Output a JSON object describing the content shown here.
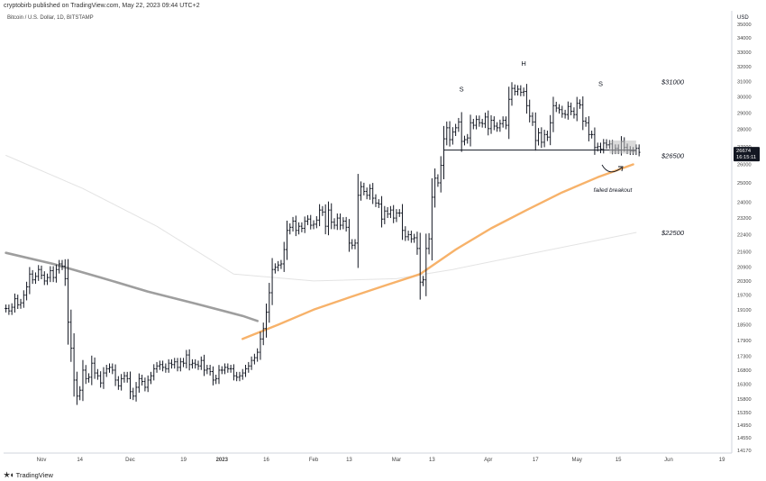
{
  "header": {
    "publisher_line": "cryptobirb published on TradingView.com, May 22, 2023 09:44 UTC+2",
    "symbol_line": "Bitcoin / U.S. Dollar, 1D, BITSTAMP"
  },
  "footer": {
    "brand": "TradingView"
  },
  "chart_data": {
    "type": "ohlc",
    "title": "Bitcoin / U.S. Dollar, 1D, BITSTAMP",
    "currency_label": "USD",
    "x_tick_labels": [
      "Nov",
      "14",
      "Dec",
      "19",
      "2023",
      "16",
      "Feb",
      "13",
      "Mar",
      "13",
      "Apr",
      "17",
      "May",
      "15",
      "Jun",
      "19"
    ],
    "x_tick_dates": [
      "2022-11-01",
      "2022-11-14",
      "2022-12-01",
      "2022-12-19",
      "2023-01-01",
      "2023-01-16",
      "2023-02-01",
      "2023-02-13",
      "2023-03-01",
      "2023-03-13",
      "2023-04-01",
      "2023-04-17",
      "2023-05-01",
      "2023-05-15",
      "2023-06-01",
      "2023-06-19"
    ],
    "y_tick_labels": [
      "35000",
      "34000",
      "33000",
      "32000",
      "31000",
      "30000",
      "29000",
      "28000",
      "27000",
      "26000",
      "25000",
      "24000",
      "23200",
      "22400",
      "21600",
      "20900",
      "20300",
      "19700",
      "19100",
      "18500",
      "17900",
      "17300",
      "16800",
      "16300",
      "15800",
      "15350",
      "14950",
      "14550",
      "14170"
    ],
    "price_axis_badge": {
      "price": "26674",
      "countdown": "16:15:11"
    },
    "annotations": {
      "left_shoulder": "S",
      "head": "H",
      "right_shoulder": "S",
      "failed_breakout": "failed breakout"
    },
    "levels": [
      {
        "label": "$31000",
        "value": 31000
      },
      {
        "label": "$26500",
        "value": 26500
      },
      {
        "label": "$22500",
        "value": 22500
      }
    ],
    "neckline": {
      "from_date": "2023-03-17",
      "to_date": "2023-05-21",
      "value": 26800
    },
    "ohlc_series": {
      "start_date": "2022-10-20",
      "closes": [
        19150,
        19050,
        19200,
        19550,
        19300,
        19380,
        19700,
        20050,
        20600,
        20350,
        20500,
        20800,
        20550,
        20300,
        20450,
        20750,
        20450,
        20800,
        21050,
        20950,
        20400,
        18600,
        17600,
        16450,
        15900,
        16100,
        16800,
        16500,
        16550,
        17050,
        16700,
        16600,
        16350,
        16700,
        16850,
        16900,
        16800,
        16450,
        16250,
        16500,
        16600,
        16500,
        16050,
        15900,
        16200,
        16500,
        16400,
        16200,
        16450,
        16600,
        16850,
        16950,
        17000,
        16900,
        16850,
        17050,
        17000,
        17100,
        16900,
        17100,
        17050,
        17350,
        17000,
        17050,
        17000,
        16950,
        17150,
        16800,
        16850,
        16750,
        16450,
        16500,
        16800,
        16800,
        16900,
        16850,
        16850,
        16600,
        16550,
        16600,
        16700,
        16850,
        16950,
        17150,
        17250,
        17450,
        17950,
        18350,
        19000,
        19800,
        20800,
        20900,
        21000,
        21050,
        21700,
        22600,
        22750,
        23050,
        22600,
        22800,
        22700,
        23050,
        23150,
        22850,
        22900,
        23100,
        23600,
        23500,
        22800,
        23600,
        23000,
        22850,
        23200,
        22850,
        23050,
        22750,
        22000,
        21900,
        22000,
        24350,
        24800,
        24550,
        24350,
        24700,
        24200,
        23950,
        23900,
        23150,
        23550,
        23400,
        23600,
        23200,
        23450,
        23450,
        22600,
        22300,
        22400,
        22200,
        22250,
        21750,
        20250,
        20350,
        21750,
        22200,
        24250,
        25250,
        25000,
        25950,
        27450,
        28100,
        27400,
        27850,
        28100,
        28450,
        27300,
        27400,
        27500,
        28400,
        28250,
        28600,
        28400,
        28350,
        28750,
        28050,
        28550,
        28200,
        28100,
        28350,
        28550,
        28250,
        29850,
        30550,
        30350,
        30500,
        30300,
        30350,
        29450,
        28800,
        28450,
        27350,
        27800,
        27250,
        27700,
        27550,
        28400,
        29450,
        29300,
        29200,
        28950,
        28900,
        29400,
        29100,
        28900,
        29600,
        29500,
        28500,
        28400,
        27700,
        27700,
        26950,
        27000,
        26850,
        27200,
        27100,
        27150,
        26800,
        26900,
        26800,
        27300,
        26950,
        26800,
        26750,
        26750,
        26900,
        26674
      ]
    },
    "ema_200": {
      "color": "#f7b26a",
      "points": [
        {
          "date": "2023-01-08",
          "value": 17950
        },
        {
          "date": "2023-01-20",
          "value": 18500
        },
        {
          "date": "2023-02-01",
          "value": 19100
        },
        {
          "date": "2023-02-13",
          "value": 19600
        },
        {
          "date": "2023-02-25",
          "value": 20100
        },
        {
          "date": "2023-03-09",
          "value": 20600
        },
        {
          "date": "2023-03-21",
          "value": 21700
        },
        {
          "date": "2023-04-02",
          "value": 22700
        },
        {
          "date": "2023-04-14",
          "value": 23600
        },
        {
          "date": "2023-04-26",
          "value": 24500
        },
        {
          "date": "2023-05-08",
          "value": 25300
        },
        {
          "date": "2023-05-20",
          "value": 26000
        }
      ]
    },
    "ma_200": {
      "color": "#9e9e9e",
      "points": [
        {
          "date": "2022-10-20",
          "value": 21550
        },
        {
          "date": "2022-11-05",
          "value": 21050
        },
        {
          "date": "2022-11-21",
          "value": 20450
        },
        {
          "date": "2022-12-07",
          "value": 19850
        },
        {
          "date": "2022-12-23",
          "value": 19350
        },
        {
          "date": "2023-01-08",
          "value": 18850
        },
        {
          "date": "2023-01-13",
          "value": 18650
        }
      ]
    },
    "ma_faint": {
      "color": "#e3e3e3",
      "points": [
        {
          "date": "2022-10-20",
          "value": 26500
        },
        {
          "date": "2022-11-15",
          "value": 24700
        },
        {
          "date": "2022-12-10",
          "value": 22800
        },
        {
          "date": "2023-01-05",
          "value": 20600
        },
        {
          "date": "2023-02-01",
          "value": 20300
        },
        {
          "date": "2023-03-01",
          "value": 20400
        },
        {
          "date": "2023-03-20",
          "value": 20800
        },
        {
          "date": "2023-04-15",
          "value": 21500
        },
        {
          "date": "2023-05-21",
          "value": 22500
        }
      ]
    },
    "grid": false,
    "price_scale": "log",
    "ylim": [
      14170,
      35800
    ]
  }
}
